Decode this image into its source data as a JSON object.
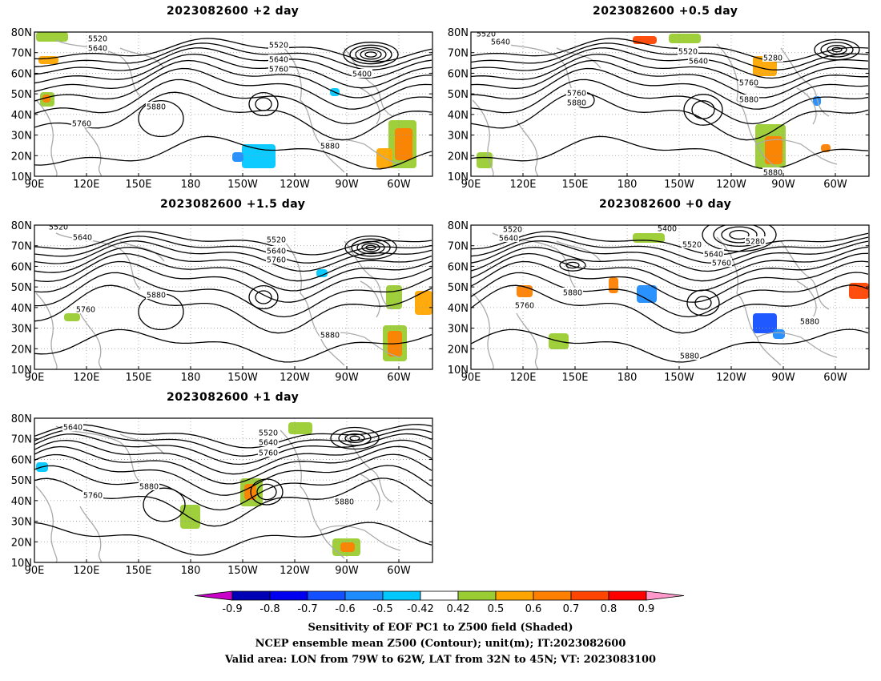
{
  "panels": [
    {
      "title": "2023082600 +2 day"
    },
    {
      "title": "2023082600 +0.5 day"
    },
    {
      "title": "2023082600 +1.5 day"
    },
    {
      "title": "2023082600 +0 day"
    },
    {
      "title": "2023082600 +1 day"
    }
  ],
  "axis": {
    "lat_labels": [
      "80N",
      "70N",
      "60N",
      "50N",
      "40N",
      "30N",
      "20N",
      "10N"
    ],
    "lon_labels": [
      "90E",
      "120E",
      "150E",
      "180",
      "150W",
      "120W",
      "90W",
      "60W"
    ]
  },
  "contour_labels": {
    "p0": [
      "5520",
      "5640",
      "5520",
      "5640",
      "5760",
      "5400",
      "5880",
      "5760",
      "5880"
    ],
    "p1": [
      "5520",
      "5640",
      "5520",
      "5640",
      "5280",
      "5760",
      "5760",
      "5880",
      "5880",
      "5880"
    ],
    "p2": [
      "5520",
      "5640",
      "5520",
      "5640",
      "5760",
      "5880",
      "5760",
      "5880"
    ],
    "p3": [
      "5520",
      "5640",
      "5400",
      "5280",
      "5520",
      "5640",
      "5760",
      "5760",
      "5880",
      "5880",
      "5880"
    ],
    "p4": [
      "5640",
      "5520",
      "5640",
      "5760",
      "5880",
      "5760",
      "5880"
    ]
  },
  "colorbar": {
    "ticks": [
      "-0.9",
      "-0.8",
      "-0.7",
      "-0.6",
      "-0.5",
      "-0.42",
      "0.42",
      "0.5",
      "0.6",
      "0.7",
      "0.8",
      "0.9"
    ],
    "colors": [
      "#0000b4",
      "#0000f0",
      "#1450ff",
      "#1e8cff",
      "#00c8ff",
      "#ffffff",
      "#9acd32",
      "#ffa500",
      "#ff7f00",
      "#ff4500",
      "#ff0000"
    ],
    "low_end": "#c800c8",
    "high_end": "#ff99cc"
  },
  "footer": {
    "line1": "Sensitivity of EOF PC1 to Z500 field (Shaded)",
    "line2": "NCEP ensemble mean Z500 (Contour); unit(m); IT:2023082600",
    "line3": "Valid area: LON from 79W to 62W, LAT from 32N to 45N; VT: 2023083100"
  }
}
